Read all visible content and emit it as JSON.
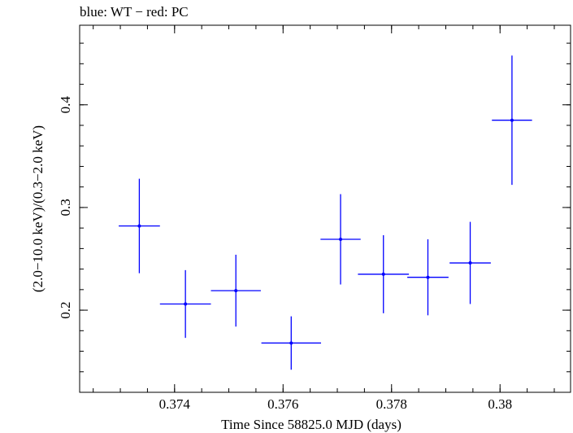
{
  "chart_data": {
    "type": "scatter",
    "title": "blue: WT − red: PC",
    "xlabel": "Time Since 58825.0 MJD (days)",
    "ylabel": "(2.0−10.0 keV)/(0.3−2.0 keV)",
    "xlim": [
      0.37225,
      0.3813
    ],
    "ylim": [
      0.12,
      0.4775
    ],
    "x_ticks": [
      0.374,
      0.376,
      0.378,
      0.38
    ],
    "x_tick_labels": [
      "0.374",
      "0.376",
      "0.378",
      "0.38"
    ],
    "y_ticks": [
      0.2,
      0.3,
      0.4
    ],
    "y_tick_labels": [
      "0.2",
      "0.3",
      "0.4"
    ],
    "grid": false,
    "series": [
      {
        "color": "#0000ff",
        "points": [
          {
            "x": 0.37335,
            "y": 0.282,
            "xerr": 0.00038,
            "yerr_low": 0.046,
            "yerr_high": 0.046
          },
          {
            "x": 0.3742,
            "y": 0.206,
            "xerr": 0.00047,
            "yerr_low": 0.033,
            "yerr_high": 0.033
          },
          {
            "x": 0.37513,
            "y": 0.219,
            "xerr": 0.00046,
            "yerr_low": 0.035,
            "yerr_high": 0.035
          },
          {
            "x": 0.37615,
            "y": 0.168,
            "xerr": 0.00055,
            "yerr_low": 0.026,
            "yerr_high": 0.026
          },
          {
            "x": 0.37706,
            "y": 0.269,
            "xerr": 0.00037,
            "yerr_low": 0.044,
            "yerr_high": 0.044
          },
          {
            "x": 0.37785,
            "y": 0.235,
            "xerr": 0.00047,
            "yerr_low": 0.038,
            "yerr_high": 0.038
          },
          {
            "x": 0.37867,
            "y": 0.232,
            "xerr": 0.00038,
            "yerr_low": 0.037,
            "yerr_high": 0.037
          },
          {
            "x": 0.37945,
            "y": 0.246,
            "xerr": 0.00038,
            "yerr_low": 0.04,
            "yerr_high": 0.04
          },
          {
            "x": 0.38022,
            "y": 0.385,
            "xerr": 0.00037,
            "yerr_low": 0.063,
            "yerr_high": 0.063
          }
        ]
      }
    ]
  }
}
